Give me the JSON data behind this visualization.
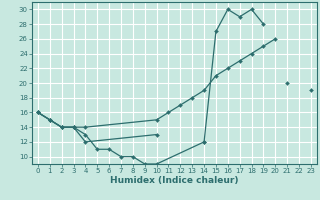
{
  "xlabel": "Humidex (Indice chaleur)",
  "xlim": [
    -0.5,
    23.5
  ],
  "ylim": [
    9,
    31
  ],
  "yticks": [
    10,
    12,
    14,
    16,
    18,
    20,
    22,
    24,
    26,
    28,
    30
  ],
  "xticks": [
    0,
    1,
    2,
    3,
    4,
    5,
    6,
    7,
    8,
    9,
    10,
    11,
    12,
    13,
    14,
    15,
    16,
    17,
    18,
    19,
    20,
    21,
    22,
    23
  ],
  "bg_color": "#c8e8e0",
  "grid_color": "#ffffff",
  "line_color": "#2d6e6e",
  "lines": [
    {
      "x": [
        0,
        1,
        2,
        3,
        4,
        5,
        6,
        7,
        8,
        9,
        10,
        14
      ],
      "y": [
        16,
        15,
        14,
        14,
        13,
        11,
        11,
        10,
        10,
        9,
        9,
        12
      ]
    },
    {
      "x": [
        0,
        1,
        2,
        3,
        4,
        10,
        11,
        12,
        13,
        14,
        15,
        16,
        17,
        18,
        19,
        20,
        21,
        22,
        23
      ],
      "y": [
        16,
        15,
        14,
        14,
        14,
        15,
        16,
        17,
        18,
        19,
        21,
        22,
        23,
        24,
        25,
        26,
        null,
        null,
        19
      ]
    },
    {
      "x": [
        0,
        1,
        2,
        3,
        4,
        10,
        11,
        12,
        13,
        14,
        15,
        16,
        17,
        18,
        19,
        20,
        21
      ],
      "y": [
        16,
        15,
        14,
        14,
        12,
        13,
        null,
        null,
        null,
        12,
        27,
        30,
        29,
        30,
        28,
        null,
        20
      ]
    }
  ]
}
